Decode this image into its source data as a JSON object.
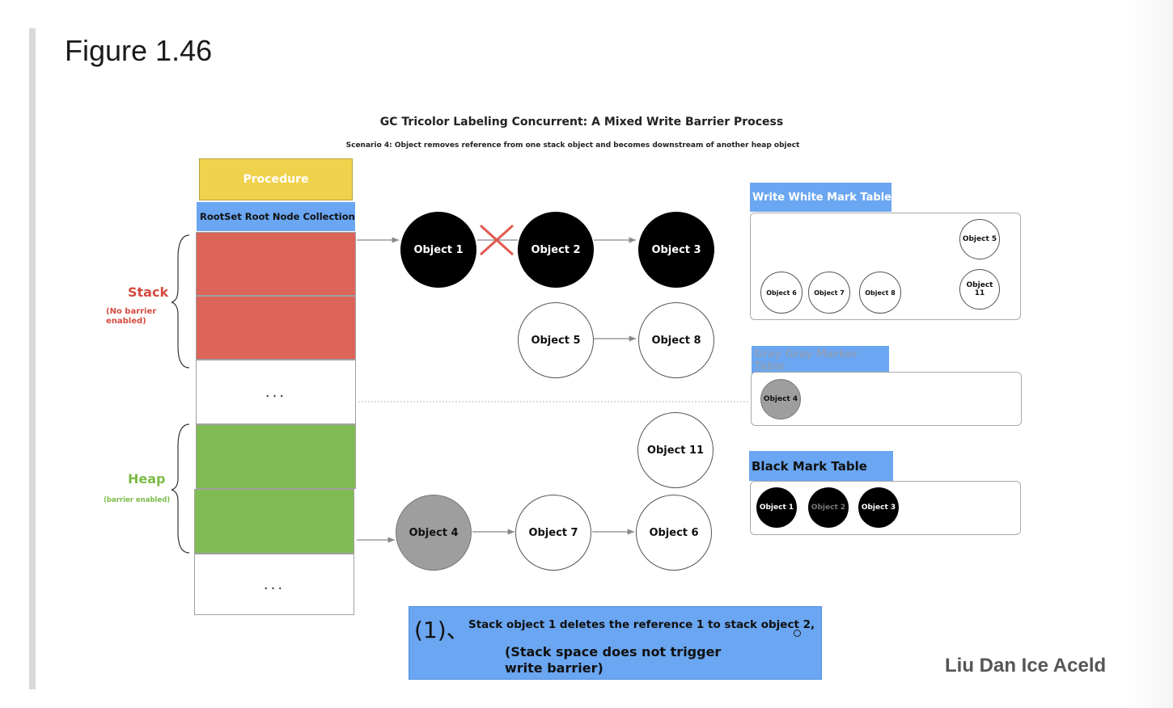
{
  "figure_title": "Figure 1.46",
  "diagram": {
    "title": "GC Tricolor Labeling Concurrent: A Mixed Write Barrier Process",
    "subtitle": "Scenario 4: Object removes reference from one stack object and becomes downstream of another heap object"
  },
  "memory": {
    "procedure_label": "Procedure",
    "rootset_label": "RootSet Root Node Collection",
    "stack_label": "Stack",
    "stack_note": "(No barrier enabled)",
    "heap_label": "Heap",
    "heap_note": "(barrier enabled)",
    "ellipsis": "..."
  },
  "objects": {
    "o1": "Object 1",
    "o2": "Object 2",
    "o3": "Object 3",
    "o5": "Object 5",
    "o8": "Object 8",
    "o11": "Object 11",
    "o4": "Object 4",
    "o7": "Object 7",
    "o6": "Object 6"
  },
  "tables": {
    "white": {
      "title": "Write White Mark Table",
      "items": [
        "Object 5",
        "Object 6",
        "Object 7",
        "Object 8",
        "Object 11"
      ]
    },
    "gray": {
      "title": "Gray Gray Marker Table",
      "items": [
        "Object 4"
      ]
    },
    "black": {
      "title": "Black Mark Table",
      "items": [
        "Object 1",
        "Object 2",
        "Object 3"
      ]
    }
  },
  "colors": {
    "black_object": "#000000",
    "gray_object": "#9e9e9e",
    "stack_red": "#dc6459",
    "heap_green": "#80bb54",
    "table_blue": "#6aa6f1",
    "procedure_yellow": "#f0d24c",
    "delete_cross": "#e05a50"
  },
  "note": {
    "number": "(1)、",
    "line1": "Stack object 1 deletes the reference 1 to stack object 2,",
    "line2": "(Stack space does not trigger write barrier)"
  },
  "author": "Liu Dan Ice Aceld"
}
